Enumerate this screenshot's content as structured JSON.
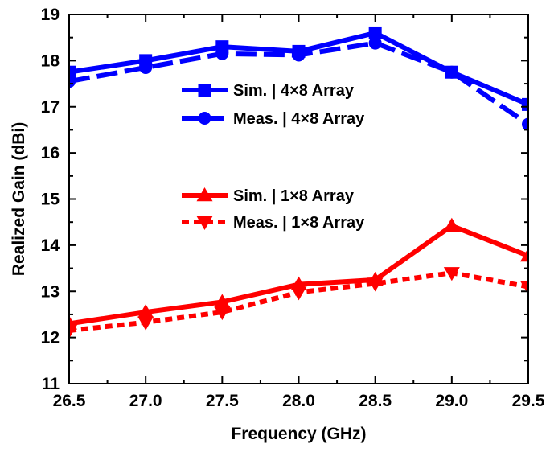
{
  "chart_data": {
    "type": "line",
    "xlabel": "Frequency (GHz)",
    "ylabel": "Realized Gain (dBi)",
    "xlim": [
      26.5,
      29.5
    ],
    "ylim": [
      11,
      19
    ],
    "xticks": [
      "26.5",
      "27.0",
      "27.5",
      "28.0",
      "28.5",
      "29.0",
      "29.5"
    ],
    "yticks": [
      "11",
      "12",
      "13",
      "14",
      "15",
      "16",
      "17",
      "18",
      "19"
    ],
    "grid": false,
    "legend_placement": "center",
    "x": [
      26.5,
      27.0,
      27.5,
      28.0,
      28.5,
      29.0,
      29.5
    ],
    "series": [
      {
        "name": "Sim. | 4×8 Array",
        "values": [
          17.75,
          18.0,
          18.3,
          18.2,
          18.6,
          17.75,
          17.05
        ],
        "color": "#0000FF",
        "line": "solid",
        "marker": "square"
      },
      {
        "name": "Meas. | 4×8 Array",
        "values": [
          17.55,
          17.85,
          18.15,
          18.12,
          18.38,
          17.75,
          16.62
        ],
        "color": "#0000FF",
        "line": "dashed",
        "marker": "circle"
      },
      {
        "name": "Sim. | 1×8 Array",
        "values": [
          12.3,
          12.55,
          12.77,
          13.15,
          13.25,
          14.42,
          13.77
        ],
        "color": "#FF0000",
        "line": "solid",
        "marker": "triangle-up"
      },
      {
        "name": "Meas. | 1×8 Array",
        "values": [
          12.15,
          12.33,
          12.55,
          12.98,
          13.17,
          13.4,
          13.1
        ],
        "color": "#FF0000",
        "line": "dotted",
        "marker": "triangle-down"
      }
    ]
  }
}
